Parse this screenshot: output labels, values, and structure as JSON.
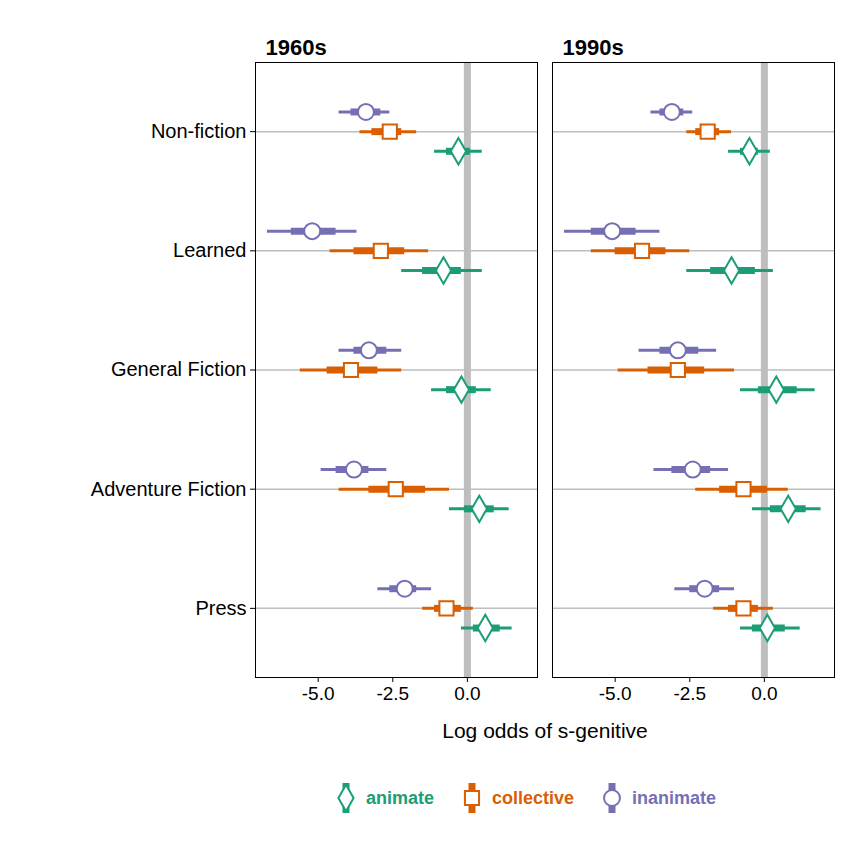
{
  "chart_data": {
    "type": "forest",
    "x_label": "Log odds of s-genitive",
    "panels": [
      "1960s",
      "1990s"
    ],
    "categories": [
      "Non-fiction",
      "Learned",
      "General Fiction",
      "Adventure Fiction",
      "Press"
    ],
    "xlim": [
      -7.1,
      2.35
    ],
    "xticks": [
      {
        "value": -5,
        "label": "-5.0"
      },
      {
        "value": -2.5,
        "label": "-2.5"
      },
      {
        "value": 0,
        "label": "0.0"
      }
    ],
    "reference_line": 0,
    "grid": true,
    "legend": "bottom",
    "series": [
      {
        "name": "animate",
        "color": "#1b9e77",
        "marker": "diamond",
        "values": [
          [
            -0.3,
            -0.8,
            -0.2,
            0.4,
            0.6
          ],
          [
            -0.5,
            -1.1,
            0.4,
            0.8,
            0.1
          ]
        ],
        "interval_inner": [
          [
            [
              -0.7,
              0.1
            ],
            [
              -1.5,
              -0.2
            ],
            [
              -0.7,
              0.3
            ],
            [
              -0.1,
              0.9
            ],
            [
              0.2,
              1.1
            ]
          ],
          [
            [
              -0.8,
              -0.2
            ],
            [
              -1.8,
              -0.3
            ],
            [
              -0.2,
              1.1
            ],
            [
              0.2,
              1.4
            ],
            [
              -0.4,
              0.7
            ]
          ]
        ],
        "interval_outer": [
          [
            [
              -1.1,
              0.5
            ],
            [
              -2.2,
              0.5
            ],
            [
              -1.2,
              0.8
            ],
            [
              -0.6,
              1.4
            ],
            [
              -0.2,
              1.5
            ]
          ],
          [
            [
              -1.2,
              0.2
            ],
            [
              -2.6,
              0.3
            ],
            [
              -0.8,
              1.7
            ],
            [
              -0.4,
              1.9
            ],
            [
              -0.8,
              1.2
            ]
          ]
        ]
      },
      {
        "name": "collective",
        "color": "#d95f02",
        "marker": "square",
        "values": [
          [
            -2.6,
            -2.9,
            -3.9,
            -2.4,
            -0.7
          ],
          [
            -1.9,
            -4.1,
            -2.9,
            -0.7,
            -0.7
          ]
        ],
        "interval_inner": [
          [
            [
              -3.2,
              -2.2
            ],
            [
              -3.8,
              -2.1
            ],
            [
              -4.7,
              -3.0
            ],
            [
              -3.3,
              -1.4
            ],
            [
              -1.1,
              -0.2
            ]
          ],
          [
            [
              -2.3,
              -1.5
            ],
            [
              -5.0,
              -3.3
            ],
            [
              -3.9,
              -2.0
            ],
            [
              -1.5,
              0.1
            ],
            [
              -1.2,
              -0.2
            ]
          ]
        ],
        "interval_outer": [
          [
            [
              -3.6,
              -1.7
            ],
            [
              -4.6,
              -1.3
            ],
            [
              -5.6,
              -2.2
            ],
            [
              -4.3,
              -0.6
            ],
            [
              -1.5,
              0.2
            ]
          ],
          [
            [
              -2.6,
              -1.1
            ],
            [
              -5.8,
              -2.5
            ],
            [
              -4.9,
              -1.0
            ],
            [
              -2.3,
              0.8
            ],
            [
              -1.7,
              0.3
            ]
          ]
        ]
      },
      {
        "name": "inanimate",
        "color": "#7570b3",
        "marker": "circle",
        "values": [
          [
            -3.4,
            -5.2,
            -3.3,
            -3.8,
            -2.1
          ],
          [
            -3.1,
            -5.1,
            -2.9,
            -2.4,
            -2.0
          ]
        ],
        "interval_inner": [
          [
            [
              -3.9,
              -2.9
            ],
            [
              -5.9,
              -4.4
            ],
            [
              -3.8,
              -2.7
            ],
            [
              -4.4,
              -3.3
            ],
            [
              -2.6,
              -1.7
            ]
          ],
          [
            [
              -3.5,
              -2.7
            ],
            [
              -5.8,
              -4.3
            ],
            [
              -3.5,
              -2.2
            ],
            [
              -3.1,
              -1.8
            ],
            [
              -2.5,
              -1.5
            ]
          ]
        ],
        "interval_outer": [
          [
            [
              -4.3,
              -2.6
            ],
            [
              -6.7,
              -3.7
            ],
            [
              -4.3,
              -2.2
            ],
            [
              -4.9,
              -2.7
            ],
            [
              -3.0,
              -1.2
            ]
          ],
          [
            [
              -3.8,
              -2.4
            ],
            [
              -6.7,
              -3.5
            ],
            [
              -4.2,
              -1.6
            ],
            [
              -3.7,
              -1.2
            ],
            [
              -3.0,
              -1.0
            ]
          ]
        ]
      }
    ]
  }
}
